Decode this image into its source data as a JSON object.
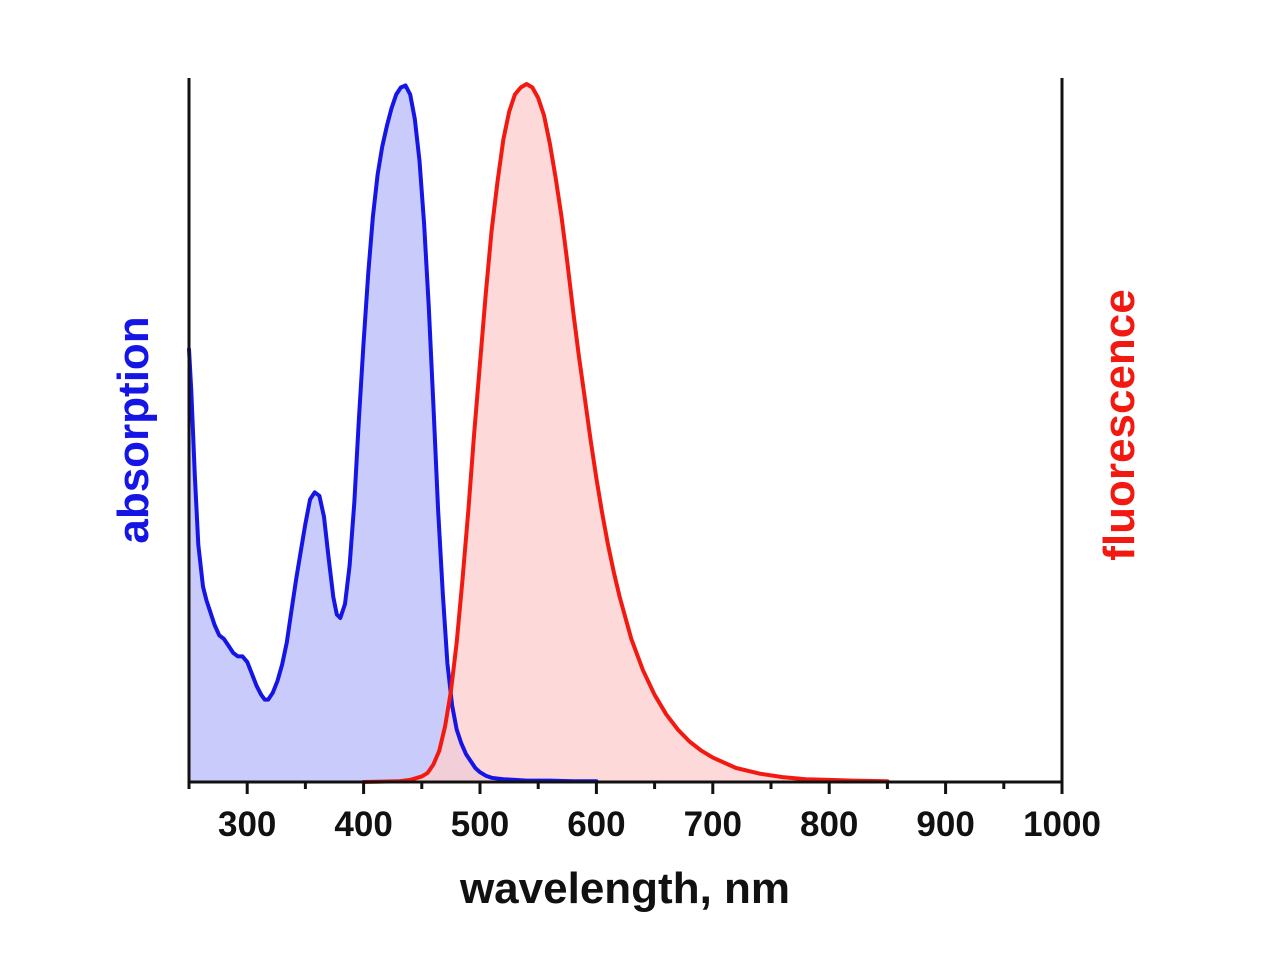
{
  "chart_data": {
    "type": "area",
    "title": "",
    "xlabel": "wavelength, nm",
    "ylabel_left": "absorption",
    "ylabel_right": "fluorescence",
    "xlim": [
      250,
      1000
    ],
    "ylim": [
      0,
      1
    ],
    "x_ticks": [
      300,
      400,
      500,
      600,
      700,
      800,
      900,
      1000
    ],
    "x_minor_tick_step": 50,
    "y_axis_ticks_shown": false,
    "grid": false,
    "legend": "none",
    "series": [
      {
        "axis": "left",
        "line_color": "#1515e6",
        "fill_color": "#c9ccfa",
        "points": [
          [
            250,
            0.62
          ],
          [
            252,
            0.56
          ],
          [
            255,
            0.44
          ],
          [
            258,
            0.34
          ],
          [
            262,
            0.28
          ],
          [
            265,
            0.26
          ],
          [
            268,
            0.245
          ],
          [
            272,
            0.225
          ],
          [
            276,
            0.21
          ],
          [
            280,
            0.205
          ],
          [
            284,
            0.195
          ],
          [
            288,
            0.185
          ],
          [
            292,
            0.18
          ],
          [
            296,
            0.18
          ],
          [
            300,
            0.172
          ],
          [
            304,
            0.155
          ],
          [
            308,
            0.138
          ],
          [
            312,
            0.125
          ],
          [
            315,
            0.118
          ],
          [
            318,
            0.118
          ],
          [
            322,
            0.128
          ],
          [
            326,
            0.145
          ],
          [
            330,
            0.168
          ],
          [
            334,
            0.2
          ],
          [
            338,
            0.245
          ],
          [
            342,
            0.29
          ],
          [
            346,
            0.33
          ],
          [
            350,
            0.37
          ],
          [
            354,
            0.405
          ],
          [
            358,
            0.415
          ],
          [
            362,
            0.41
          ],
          [
            366,
            0.38
          ],
          [
            370,
            0.32
          ],
          [
            374,
            0.265
          ],
          [
            377,
            0.24
          ],
          [
            380,
            0.235
          ],
          [
            384,
            0.255
          ],
          [
            388,
            0.31
          ],
          [
            392,
            0.4
          ],
          [
            396,
            0.52
          ],
          [
            400,
            0.63
          ],
          [
            404,
            0.73
          ],
          [
            408,
            0.81
          ],
          [
            412,
            0.87
          ],
          [
            416,
            0.91
          ],
          [
            420,
            0.94
          ],
          [
            424,
            0.965
          ],
          [
            428,
            0.985
          ],
          [
            432,
            0.995
          ],
          [
            436,
            0.998
          ],
          [
            440,
            0.985
          ],
          [
            444,
            0.95
          ],
          [
            448,
            0.89
          ],
          [
            452,
            0.8
          ],
          [
            456,
            0.68
          ],
          [
            460,
            0.54
          ],
          [
            464,
            0.39
          ],
          [
            468,
            0.27
          ],
          [
            472,
            0.17
          ],
          [
            476,
            0.11
          ],
          [
            480,
            0.075
          ],
          [
            484,
            0.055
          ],
          [
            488,
            0.04
          ],
          [
            492,
            0.03
          ],
          [
            496,
            0.02
          ],
          [
            500,
            0.014
          ],
          [
            505,
            0.009
          ],
          [
            510,
            0.006
          ],
          [
            520,
            0.004
          ],
          [
            530,
            0.003
          ],
          [
            540,
            0.002
          ],
          [
            560,
            0.002
          ],
          [
            580,
            0.001
          ],
          [
            600,
            0.001
          ]
        ]
      },
      {
        "axis": "right",
        "line_color": "#f21a10",
        "fill_color": "#fdd0d0",
        "points": [
          [
            400,
            0.0
          ],
          [
            430,
            0.001
          ],
          [
            440,
            0.003
          ],
          [
            450,
            0.008
          ],
          [
            455,
            0.013
          ],
          [
            460,
            0.025
          ],
          [
            465,
            0.045
          ],
          [
            470,
            0.08
          ],
          [
            475,
            0.13
          ],
          [
            480,
            0.2
          ],
          [
            485,
            0.29
          ],
          [
            490,
            0.39
          ],
          [
            495,
            0.5
          ],
          [
            500,
            0.6
          ],
          [
            505,
            0.7
          ],
          [
            510,
            0.79
          ],
          [
            515,
            0.86
          ],
          [
            520,
            0.92
          ],
          [
            525,
            0.96
          ],
          [
            530,
            0.985
          ],
          [
            535,
            0.995
          ],
          [
            540,
            1.0
          ],
          [
            545,
            0.995
          ],
          [
            550,
            0.98
          ],
          [
            555,
            0.955
          ],
          [
            560,
            0.915
          ],
          [
            565,
            0.865
          ],
          [
            570,
            0.81
          ],
          [
            575,
            0.745
          ],
          [
            580,
            0.675
          ],
          [
            585,
            0.61
          ],
          [
            590,
            0.55
          ],
          [
            595,
            0.49
          ],
          [
            600,
            0.435
          ],
          [
            605,
            0.385
          ],
          [
            610,
            0.34
          ],
          [
            615,
            0.3
          ],
          [
            620,
            0.265
          ],
          [
            630,
            0.205
          ],
          [
            640,
            0.16
          ],
          [
            650,
            0.125
          ],
          [
            660,
            0.097
          ],
          [
            670,
            0.075
          ],
          [
            680,
            0.058
          ],
          [
            690,
            0.045
          ],
          [
            700,
            0.035
          ],
          [
            720,
            0.02
          ],
          [
            740,
            0.012
          ],
          [
            760,
            0.007
          ],
          [
            780,
            0.004
          ],
          [
            800,
            0.003
          ],
          [
            820,
            0.002
          ],
          [
            850,
            0.001
          ]
        ]
      }
    ]
  }
}
